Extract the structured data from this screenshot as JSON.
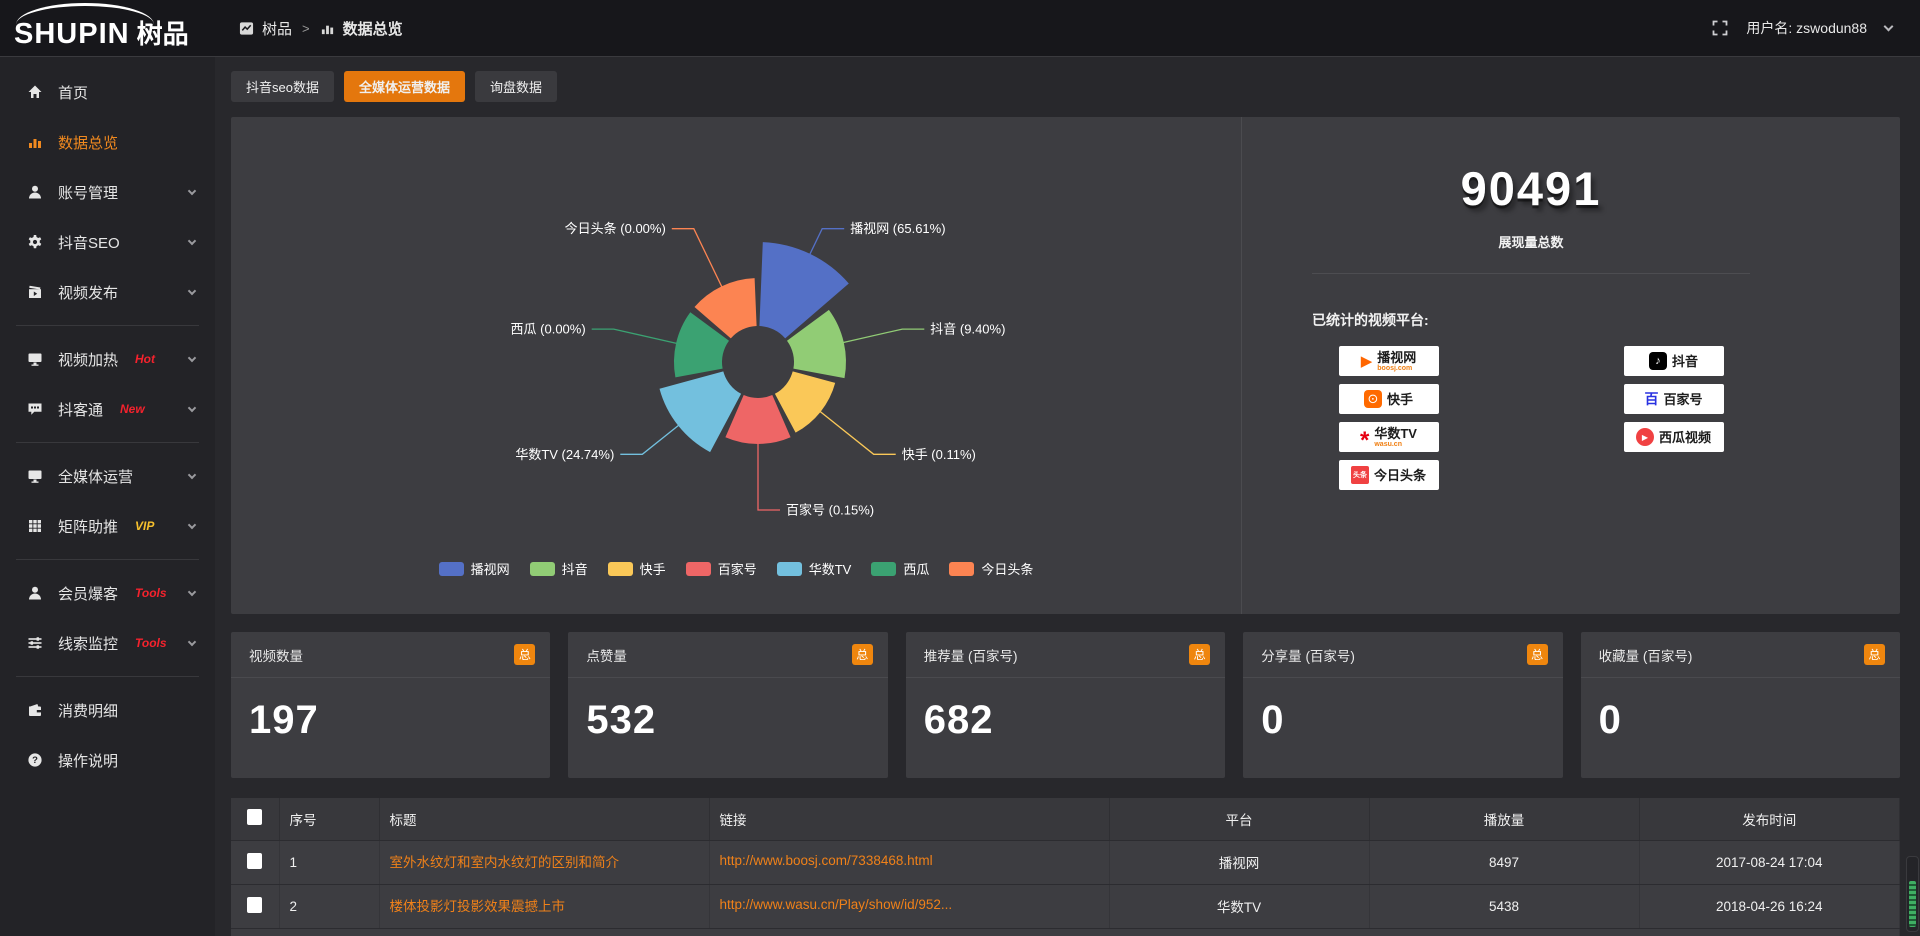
{
  "brand": {
    "name_en": "SHUPIN",
    "name_cn": "树品"
  },
  "topbar": {
    "breadcrumb_home": "树品",
    "breadcrumb_sep": ">",
    "breadcrumb_current": "数据总览",
    "username": "用户名: zswodun88"
  },
  "sidebar": {
    "items": [
      {
        "label": "首页",
        "icon": "home",
        "badge": "",
        "badge_color": "",
        "chevron": false,
        "active": false,
        "divider_after": false
      },
      {
        "label": "数据总览",
        "icon": "chart",
        "badge": "",
        "badge_color": "",
        "chevron": false,
        "active": true,
        "divider_after": false
      },
      {
        "label": "账号管理",
        "icon": "user",
        "badge": "",
        "badge_color": "",
        "chevron": true,
        "active": false,
        "divider_after": false
      },
      {
        "label": "抖音SEO",
        "icon": "gear",
        "badge": "",
        "badge_color": "",
        "chevron": true,
        "active": false,
        "divider_after": false
      },
      {
        "label": "视频发布",
        "icon": "publish",
        "badge": "",
        "badge_color": "",
        "chevron": true,
        "active": false,
        "divider_after": true
      },
      {
        "label": "视频加热",
        "icon": "monitor",
        "badge": "Hot",
        "badge_color": "#f5222d",
        "chevron": true,
        "active": false,
        "divider_after": false
      },
      {
        "label": "抖客通",
        "icon": "chat",
        "badge": "New",
        "badge_color": "#f5222d",
        "chevron": true,
        "active": false,
        "divider_after": true
      },
      {
        "label": "全媒体运营",
        "icon": "monitor",
        "badge": "",
        "badge_color": "",
        "chevron": true,
        "active": false,
        "divider_after": false
      },
      {
        "label": "矩阵助推",
        "icon": "grid",
        "badge": "VIP",
        "badge_color": "#f6c02d",
        "chevron": true,
        "active": false,
        "divider_after": true
      },
      {
        "label": "会员爆客",
        "icon": "user",
        "badge": "Tools",
        "badge_color": "#f5222d",
        "chevron": true,
        "active": false,
        "divider_after": false
      },
      {
        "label": "线索监控",
        "icon": "sliders",
        "badge": "Tools",
        "badge_color": "#f5222d",
        "chevron": true,
        "active": false,
        "divider_after": true
      },
      {
        "label": "消费明细",
        "icon": "wallet",
        "badge": "",
        "badge_color": "",
        "chevron": false,
        "active": false,
        "divider_after": false
      },
      {
        "label": "操作说明",
        "icon": "question",
        "badge": "",
        "badge_color": "",
        "chevron": false,
        "active": false,
        "divider_after": false
      }
    ]
  },
  "tabs": {
    "items": [
      {
        "label": "抖音seo数据",
        "active": false
      },
      {
        "label": "全媒体运营数据",
        "active": true
      },
      {
        "label": "询盘数据",
        "active": false
      }
    ]
  },
  "chart_data": {
    "type": "pie",
    "variant": "nightingale-rose",
    "title": "",
    "legend_position": "bottom",
    "inner_radius": 36,
    "series": [
      {
        "name": "播视网",
        "percent": 65.61,
        "color": "#5470c6",
        "radius": 120
      },
      {
        "name": "抖音",
        "percent": 9.4,
        "color": "#91cc75",
        "radius": 88
      },
      {
        "name": "快手",
        "percent": 0.11,
        "color": "#fac858",
        "radius": 80
      },
      {
        "name": "百家号",
        "percent": 0.15,
        "color": "#ee6666",
        "radius": 82
      },
      {
        "name": "华数TV",
        "percent": 24.74,
        "color": "#73c0de",
        "radius": 102
      },
      {
        "name": "西瓜",
        "percent": 0.0,
        "color": "#3ba272",
        "radius": 84
      },
      {
        "name": "今日头条",
        "percent": 0.0,
        "color": "#fc8452",
        "radius": 84
      }
    ]
  },
  "summary": {
    "total": "90491",
    "total_label": "展现量总数",
    "platforms_title": "已统计的视频平台:",
    "platforms_left": [
      {
        "name": "播视网",
        "sub": "boosj.com",
        "icon": "boosj"
      },
      {
        "name": "快手",
        "sub": "",
        "icon": "kuaishou"
      },
      {
        "name": "华数TV",
        "sub": "wasu.cn",
        "icon": "wasu"
      },
      {
        "name": "今日头条",
        "sub": "",
        "icon": "toutiao"
      }
    ],
    "platforms_right": [
      {
        "name": "抖音",
        "sub": "",
        "icon": "douyin"
      },
      {
        "name": "百家号",
        "sub": "",
        "icon": "baijiahao"
      },
      {
        "name": "西瓜视频",
        "sub": "",
        "icon": "xigua"
      }
    ]
  },
  "stats": {
    "badge": "总",
    "cards": [
      {
        "label": "视频数量",
        "value": "197"
      },
      {
        "label": "点赞量",
        "value": "532"
      },
      {
        "label": "推荐量 (百家号)",
        "value": "682"
      },
      {
        "label": "分享量 (百家号)",
        "value": "0"
      },
      {
        "label": "收藏量 (百家号)",
        "value": "0"
      }
    ]
  },
  "table": {
    "headers": [
      "序号",
      "标题",
      "链接",
      "平台",
      "播放量",
      "发布时间"
    ],
    "rows": [
      {
        "index": "1",
        "title": "室外水纹灯和室内水纹灯的区别和简介",
        "link": "http://www.boosj.com/7338468.html",
        "platform": "播视网",
        "plays": "8497",
        "time": "2017-08-24 17:04"
      },
      {
        "index": "2",
        "title": "楼体投影灯投影效果震撼上市",
        "link": "http://www.wasu.cn/Play/show/id/952...",
        "platform": "华数TV",
        "plays": "5438",
        "time": "2018-04-26 16:24"
      }
    ]
  }
}
